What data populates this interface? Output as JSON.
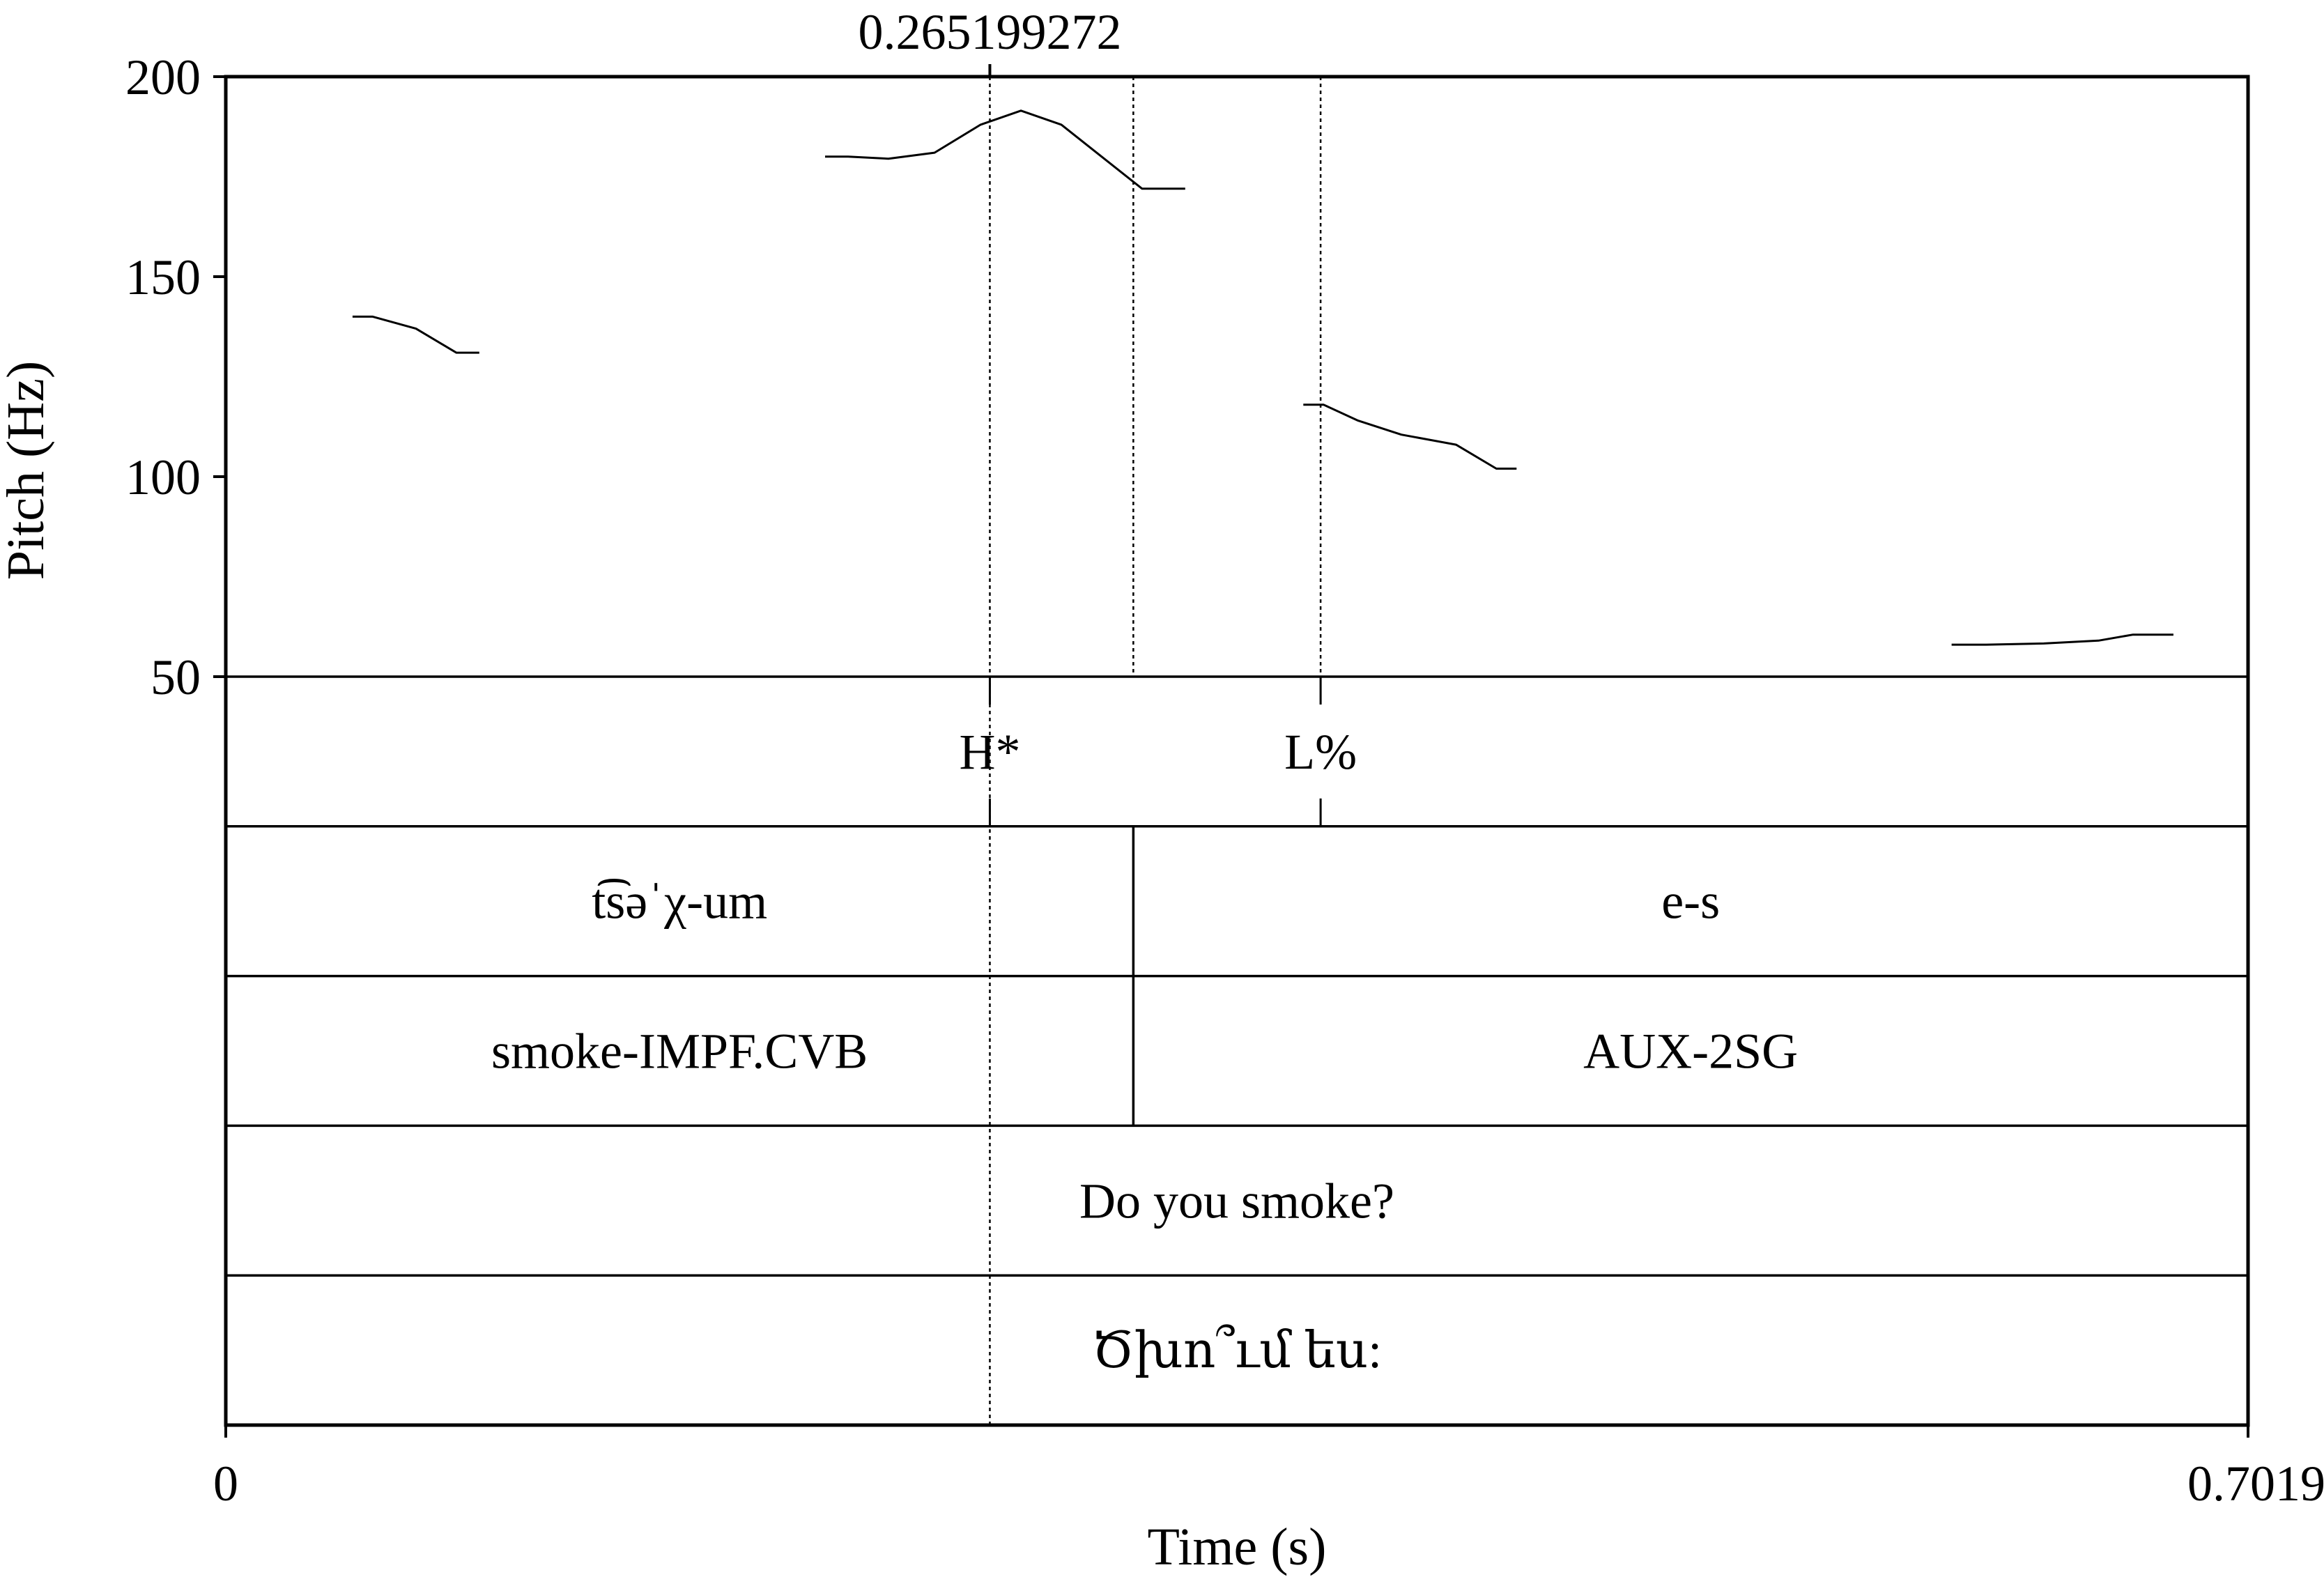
{
  "chart_data": {
    "type": "line",
    "cursor_label": "0.265199272",
    "xlabel": "Time (s)",
    "ylabel": "Pitch (Hz)",
    "xlim": [
      0,
      0.7019
    ],
    "ylim": [
      50,
      200
    ],
    "x_tick_labels": [
      "0",
      "0.7019"
    ],
    "y_ticks": [
      200,
      150,
      100,
      50
    ],
    "y_tick_labels": [
      "200",
      "150",
      "100",
      "50"
    ],
    "cursor_time": 0.265199272,
    "boundary_times": [
      0.315,
      0.38
    ],
    "pitch_segments": [
      {
        "x": [
          0.044,
          0.051,
          0.066,
          0.08,
          0.088
        ],
        "y": [
          140,
          140,
          137,
          131,
          131
        ]
      },
      {
        "x": [
          0.208,
          0.216,
          0.23,
          0.246,
          0.262,
          0.276,
          0.29,
          0.304,
          0.318,
          0.326,
          0.333
        ],
        "y": [
          180,
          180,
          179.5,
          181,
          188,
          191.5,
          188,
          180,
          172,
          172,
          172
        ]
      },
      {
        "x": [
          0.374,
          0.381,
          0.393,
          0.408,
          0.427,
          0.441,
          0.448
        ],
        "y": [
          118,
          118,
          114,
          110.5,
          108,
          102,
          102
        ]
      },
      {
        "x": [
          0.599,
          0.611,
          0.631,
          0.65,
          0.662,
          0.676
        ],
        "y": [
          58,
          58,
          58.3,
          59,
          60.5,
          60.5
        ]
      }
    ],
    "tiers": [
      {
        "intervals": [],
        "points": [
          {
            "time": 0.265199272,
            "label": "H*"
          },
          {
            "time": 0.38,
            "label": "L%"
          }
        ]
      },
      {
        "intervals": [
          {
            "start": 0,
            "end": 0.315,
            "label": "t͡səˈχ-um"
          },
          {
            "start": 0.315,
            "end": 0.7019,
            "label": "e-s"
          }
        ]
      },
      {
        "intervals": [
          {
            "start": 0,
            "end": 0.315,
            "label": "smoke-IMPF.CVB"
          },
          {
            "start": 0.315,
            "end": 0.7019,
            "label": "AUX-2SG"
          }
        ]
      },
      {
        "intervals": [
          {
            "start": 0,
            "end": 0.7019,
            "label": "Do you smoke?"
          }
        ]
      },
      {
        "intervals": [
          {
            "start": 0,
            "end": 0.7019,
            "label": "Ծխո՞ւմ ես:"
          }
        ]
      }
    ],
    "colors": {
      "line": "#000000",
      "background": "#ffffff"
    }
  }
}
